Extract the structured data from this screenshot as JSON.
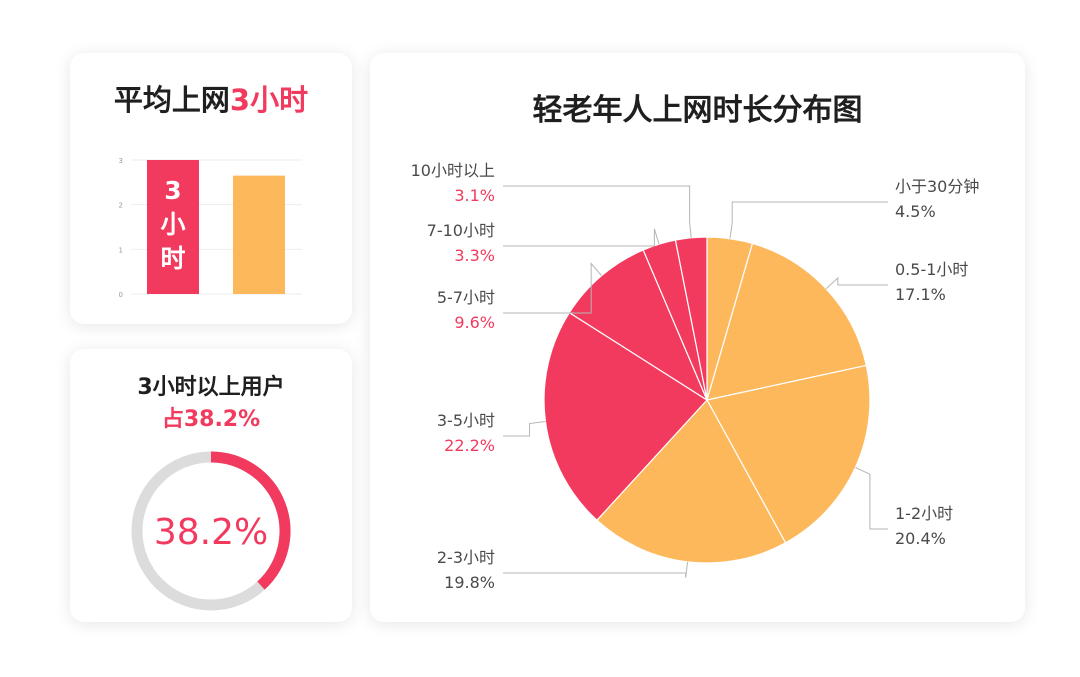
{
  "colors": {
    "red": "#f23a5e",
    "orange": "#fdb85c",
    "track": "#dcdcdc",
    "label_dark": "#4a4a4a"
  },
  "avg_card": {
    "title_prefix": "平均上网",
    "title_highlight": "3小时",
    "bar_text_lines": [
      "3",
      "小",
      "时"
    ],
    "chart_data": {
      "type": "bar",
      "categories": [
        "",
        ""
      ],
      "values": [
        3,
        2.65
      ],
      "ylim": [
        0,
        3
      ],
      "yticks": [
        "0",
        "1",
        "2",
        "3"
      ],
      "grid": true
    }
  },
  "share_card": {
    "title": "3小时以上用户",
    "subtitle": "占38.2%",
    "ring_value_label": "38.2%",
    "ring_fraction": 0.382
  },
  "pie_card": {
    "title": "轻老年人上网时长分布图",
    "chart_data": {
      "type": "pie",
      "slices": [
        {
          "label": "小于30分钟",
          "pct_label": "4.5%",
          "value": 4.5,
          "color": "#fdb85c",
          "side": "right"
        },
        {
          "label": "0.5-1小时",
          "pct_label": "17.1%",
          "value": 17.1,
          "color": "#fdb85c",
          "side": "right"
        },
        {
          "label": "1-2小时",
          "pct_label": "20.4%",
          "value": 20.4,
          "color": "#fdb85c",
          "side": "right"
        },
        {
          "label": "2-3小时",
          "pct_label": "19.8%",
          "value": 19.8,
          "color": "#fdb85c",
          "side": "left"
        },
        {
          "label": "3-5小时",
          "pct_label": "22.2%",
          "value": 22.2,
          "color": "#f23a5e",
          "side": "left"
        },
        {
          "label": "5-7小时",
          "pct_label": "9.6%",
          "value": 9.6,
          "color": "#f23a5e",
          "side": "left"
        },
        {
          "label": "7-10小时",
          "pct_label": "3.3%",
          "value": 3.3,
          "color": "#f23a5e",
          "side": "left"
        },
        {
          "label": "10小时以上",
          "pct_label": "3.1%",
          "value": 3.1,
          "color": "#f23a5e",
          "side": "left"
        }
      ]
    }
  }
}
